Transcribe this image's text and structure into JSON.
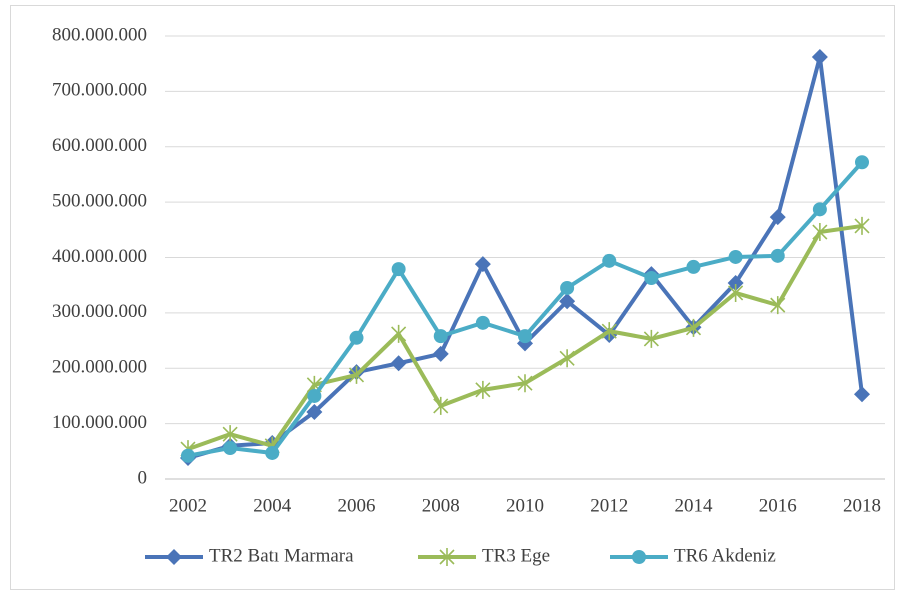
{
  "chart_data": {
    "type": "line",
    "x": [
      2002,
      2003,
      2004,
      2005,
      2006,
      2007,
      2008,
      2009,
      2010,
      2011,
      2012,
      2013,
      2014,
      2015,
      2016,
      2017,
      2018
    ],
    "series": [
      {
        "name": "TR2 Batı Marmara",
        "color": "#4a74b8",
        "marker": "diamond",
        "values": [
          38000000,
          60000000,
          65000000,
          121000000,
          193000000,
          209000000,
          226000000,
          388000000,
          245000000,
          321000000,
          260000000,
          370000000,
          274000000,
          354000000,
          473000000,
          762000000,
          153000000
        ]
      },
      {
        "name": "TR3 Ege",
        "color": "#9bbb59",
        "marker": "asterisk",
        "values": [
          54000000,
          81000000,
          60000000,
          170000000,
          188000000,
          262000000,
          132000000,
          161000000,
          173000000,
          218000000,
          267000000,
          253000000,
          273000000,
          336000000,
          314000000,
          446000000,
          457000000
        ]
      },
      {
        "name": "TR6 Akdeniz",
        "color": "#4bacc6",
        "marker": "circle",
        "values": [
          42000000,
          56000000,
          47000000,
          150000000,
          255000000,
          379000000,
          258000000,
          282000000,
          258000000,
          345000000,
          394000000,
          363000000,
          383000000,
          401000000,
          403000000,
          487000000,
          572000000
        ]
      }
    ],
    "xlim": [
      2002,
      2018
    ],
    "xticks": [
      2002,
      2004,
      2006,
      2008,
      2010,
      2012,
      2014,
      2016,
      2018
    ],
    "ylim": [
      0,
      800000000
    ],
    "yticks": [
      0,
      {
        "value": 100000000,
        "label": "100.000.000"
      },
      {
        "value": 200000000,
        "label": "200.000.000"
      },
      {
        "value": 300000000,
        "label": "300.000.000"
      },
      {
        "value": 400000000,
        "label": "400.000.000"
      },
      {
        "value": 500000000,
        "label": "500.000.000"
      },
      {
        "value": 600000000,
        "label": "600.000.000"
      },
      {
        "value": 700000000,
        "label": "700.000.000"
      },
      {
        "value": 800000000,
        "label": "800.000.000"
      }
    ],
    "grid": true,
    "legend": "bottom"
  }
}
